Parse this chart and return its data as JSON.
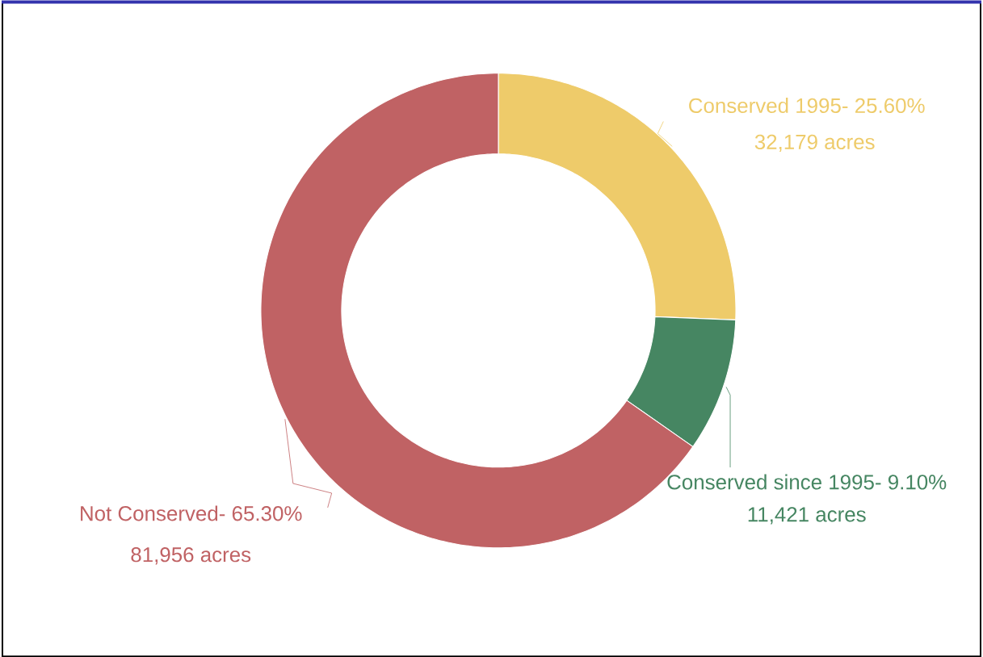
{
  "chart_data": {
    "type": "donut",
    "categories": [
      "Conserved 1995- 25.60%",
      "Conserved since 1995- 9.10%",
      "Not Conserved- 65.30%"
    ],
    "values": [
      32179,
      11421,
      81956
    ],
    "colors": [
      "#eecb6a",
      "#468662",
      "#c06264"
    ],
    "value_labels": [
      "32,179 acres",
      "11,421 acres",
      "81,956 acres"
    ]
  }
}
